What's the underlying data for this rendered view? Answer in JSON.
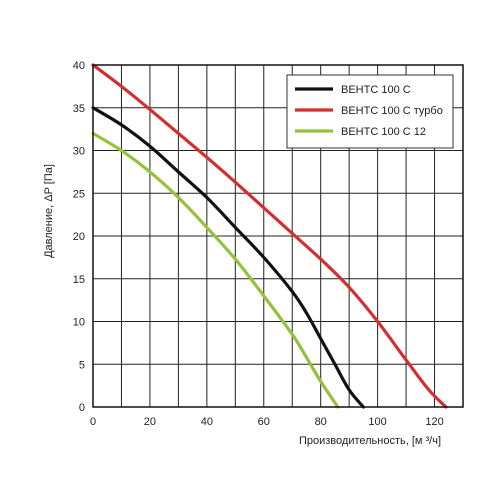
{
  "chart_data": {
    "type": "line",
    "title": "",
    "xlabel": "Производительность, [м ³/ч]",
    "ylabel": "Давление, ΔP [Па]",
    "xlim": [
      0,
      130
    ],
    "ylim": [
      0,
      40
    ],
    "x_ticks": [
      0,
      20,
      40,
      60,
      80,
      100,
      120
    ],
    "y_ticks": [
      0,
      5,
      10,
      15,
      20,
      25,
      30,
      35,
      40
    ],
    "x_tick_labels": [
      "0",
      "20",
      "40",
      "60",
      "80",
      "100",
      "120"
    ],
    "y_tick_labels": [
      "0",
      "5",
      "10",
      "15",
      "20",
      "25",
      "30",
      "35",
      "40"
    ],
    "x_grid_step": 10,
    "y_grid_step": 5,
    "grid": true,
    "legend_position": "top-right",
    "series": [
      {
        "name": "ВЕНТС 100 С",
        "color": "#111111",
        "x": [
          0,
          10,
          20,
          30,
          40,
          50,
          60,
          70,
          75,
          80,
          85,
          90,
          95
        ],
        "y": [
          35,
          33,
          30.5,
          27.5,
          24.5,
          21,
          17.5,
          13.5,
          11,
          8,
          5,
          2,
          0
        ]
      },
      {
        "name": "ВЕНТС 100 С турбо",
        "color": "#d42f2f",
        "x": [
          0,
          10,
          20,
          30,
          40,
          50,
          60,
          70,
          80,
          90,
          100,
          110,
          118,
          124
        ],
        "y": [
          40,
          37.5,
          34.8,
          32,
          29.2,
          26.3,
          23.3,
          20.3,
          17.3,
          14,
          10,
          5.5,
          2,
          0
        ]
      },
      {
        "name": "ВЕНТС 100 С 12",
        "color": "#94c23c",
        "x": [
          0,
          10,
          20,
          30,
          40,
          50,
          60,
          70,
          75,
          80,
          86
        ],
        "y": [
          32,
          30,
          27.5,
          24.5,
          21,
          17.3,
          13,
          8.5,
          5.8,
          3,
          0
        ]
      }
    ]
  }
}
